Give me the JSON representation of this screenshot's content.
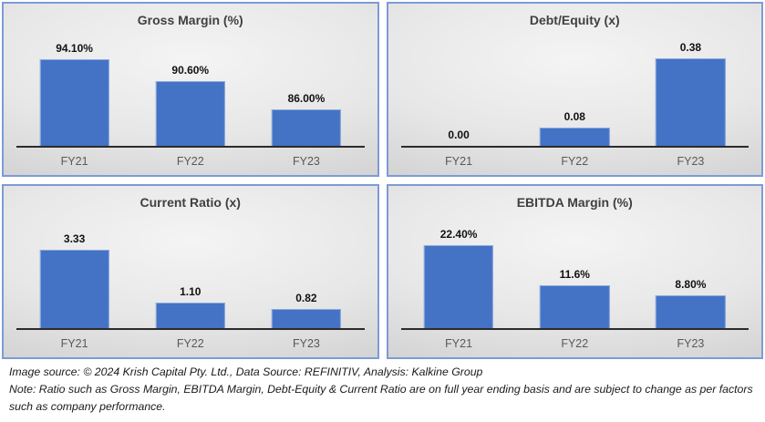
{
  "chart_data": [
    {
      "type": "bar",
      "title": "Gross Margin (%)",
      "categories": [
        "FY21",
        "FY22",
        "FY23"
      ],
      "values": [
        94.1,
        90.6,
        86.0
      ],
      "data_labels": [
        "94.10%",
        "90.60%",
        "86.00%"
      ],
      "xlabel": "",
      "ylabel": "",
      "ylim": [
        80,
        97
      ],
      "grid": false,
      "legend": "none"
    },
    {
      "type": "bar",
      "title": "Debt/Equity (x)",
      "categories": [
        "FY21",
        "FY22",
        "FY23"
      ],
      "values": [
        0.0,
        0.08,
        0.38
      ],
      "data_labels": [
        "0.00",
        "0.08",
        "0.38"
      ],
      "xlabel": "",
      "ylabel": "",
      "ylim": [
        0,
        0.45
      ],
      "grid": false,
      "legend": "none"
    },
    {
      "type": "bar",
      "title": "Current Ratio (x)",
      "categories": [
        "FY21",
        "FY22",
        "FY23"
      ],
      "values": [
        3.33,
        1.1,
        0.82
      ],
      "data_labels": [
        "3.33",
        "1.10",
        "0.82"
      ],
      "xlabel": "",
      "ylabel": "",
      "ylim": [
        0,
        4.4
      ],
      "grid": false,
      "legend": "none"
    },
    {
      "type": "bar",
      "title": "EBITDA Margin (%)",
      "categories": [
        "FY21",
        "FY22",
        "FY23"
      ],
      "values": [
        22.4,
        11.6,
        8.8
      ],
      "data_labels": [
        "22.40%",
        "11.6%",
        "8.80%"
      ],
      "xlabel": "",
      "ylabel": "",
      "ylim": [
        0,
        28
      ],
      "grid": false,
      "legend": "none"
    }
  ],
  "footer": {
    "source_line": "Image source: © 2024 Krish Capital Pty. Ltd., Data Source: REFINITIV, Analysis: Kalkine Group",
    "note_line": "Note: Ratio such as Gross Margin, EBITDA Margin, Debt-Equity & Current Ratio are on full year ending basis and are subject to change as per factors such as company performance."
  },
  "colors": {
    "bar_fill": "#4472C4",
    "bar_border": "#8BAADE",
    "panel_border": "#7D9BD6",
    "axis_line": "#2B2B2B",
    "title_text": "#404040",
    "tick_text": "#595959",
    "data_label_text": "#111111",
    "footer_text": "#1A1A1A"
  }
}
